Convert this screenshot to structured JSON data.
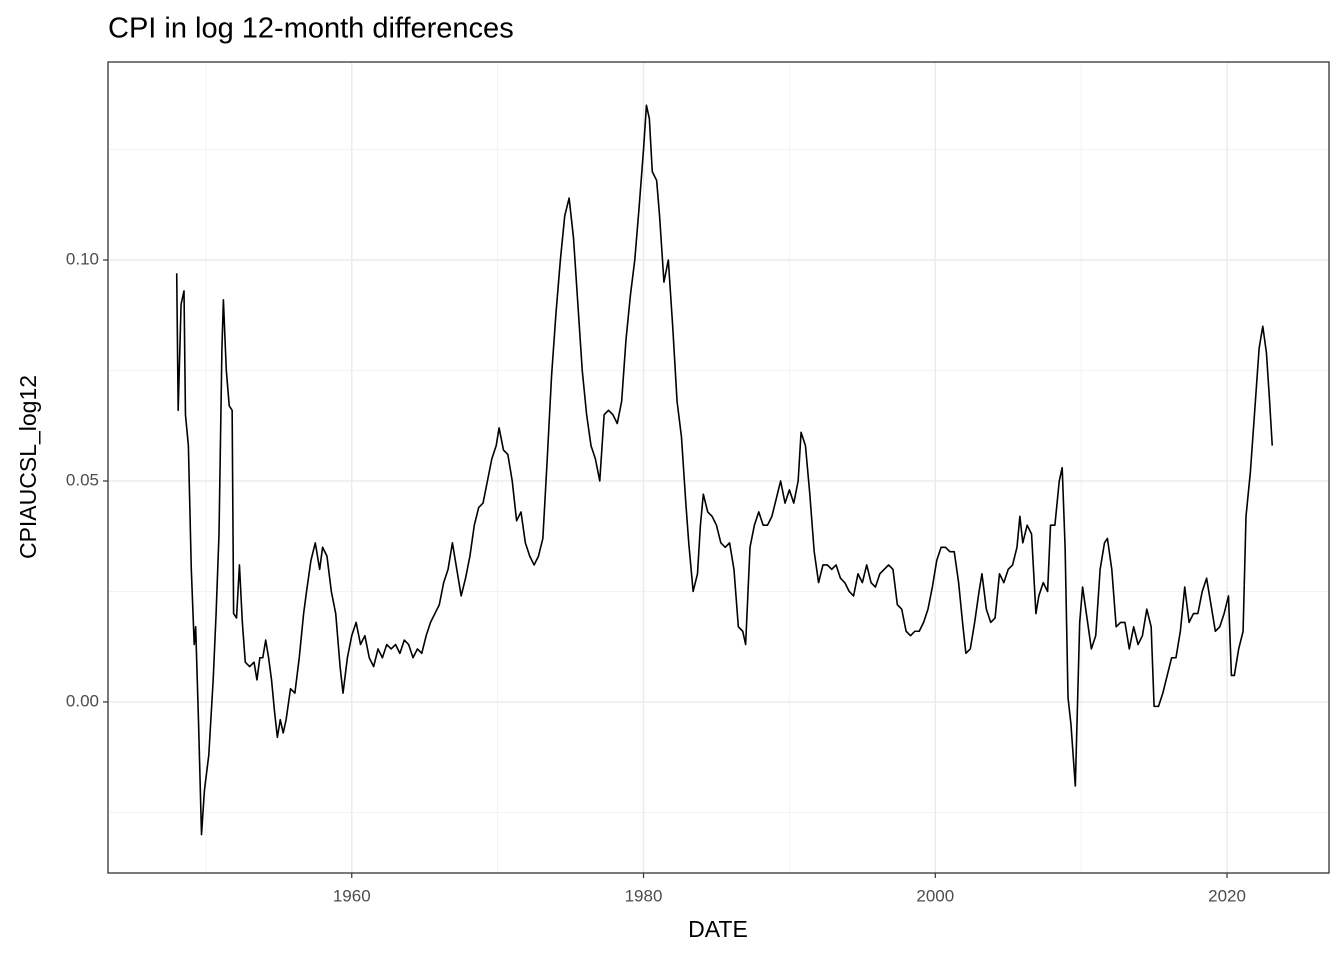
{
  "chart_data": {
    "type": "line",
    "title": "CPI in log 12-month differences",
    "xlabel": "DATE",
    "ylabel": "CPIAUCSL_log12",
    "x": [
      1948.0,
      1948.1,
      1948.3,
      1948.5,
      1948.6,
      1948.8,
      1949.0,
      1949.2,
      1949.3,
      1949.5,
      1949.7,
      1949.9,
      1950.2,
      1950.5,
      1950.7,
      1950.9,
      1951.1,
      1951.2,
      1951.4,
      1951.6,
      1951.8,
      1951.9,
      1952.1,
      1952.3,
      1952.5,
      1952.7,
      1953.0,
      1953.3,
      1953.5,
      1953.7,
      1953.9,
      1954.1,
      1954.3,
      1954.5,
      1954.7,
      1954.9,
      1955.1,
      1955.3,
      1955.5,
      1955.8,
      1956.1,
      1956.4,
      1956.7,
      1956.9,
      1957.2,
      1957.5,
      1957.8,
      1958.0,
      1958.3,
      1958.6,
      1958.9,
      1959.2,
      1959.4,
      1959.7,
      1960.0,
      1960.3,
      1960.6,
      1960.9,
      1961.2,
      1961.5,
      1961.8,
      1962.1,
      1962.4,
      1962.7,
      1963.0,
      1963.3,
      1963.6,
      1963.9,
      1964.2,
      1964.5,
      1964.8,
      1965.1,
      1965.4,
      1965.7,
      1966.0,
      1966.3,
      1966.6,
      1966.9,
      1967.2,
      1967.5,
      1967.8,
      1968.1,
      1968.4,
      1968.7,
      1969.0,
      1969.3,
      1969.6,
      1969.9,
      1970.1,
      1970.4,
      1970.7,
      1971.0,
      1971.3,
      1971.6,
      1971.9,
      1972.2,
      1972.5,
      1972.8,
      1973.1,
      1973.4,
      1973.7,
      1974.0,
      1974.3,
      1974.6,
      1974.9,
      1975.2,
      1975.5,
      1975.8,
      1976.1,
      1976.4,
      1976.7,
      1977.0,
      1977.3,
      1977.6,
      1977.9,
      1978.2,
      1978.5,
      1978.8,
      1979.1,
      1979.4,
      1979.7,
      1980.0,
      1980.2,
      1980.4,
      1980.6,
      1980.9,
      1981.1,
      1981.4,
      1981.7,
      1982.0,
      1982.3,
      1982.6,
      1982.9,
      1983.1,
      1983.4,
      1983.7,
      1983.9,
      1984.1,
      1984.4,
      1984.7,
      1985.0,
      1985.3,
      1985.6,
      1985.9,
      1986.2,
      1986.5,
      1986.8,
      1987.0,
      1987.3,
      1987.6,
      1987.9,
      1988.2,
      1988.5,
      1988.8,
      1989.1,
      1989.4,
      1989.7,
      1990.0,
      1990.3,
      1990.6,
      1990.8,
      1991.1,
      1991.4,
      1991.7,
      1992.0,
      1992.3,
      1992.6,
      1992.9,
      1993.2,
      1993.5,
      1993.8,
      1994.1,
      1994.4,
      1994.7,
      1995.0,
      1995.3,
      1995.6,
      1995.9,
      1996.2,
      1996.5,
      1996.8,
      1997.1,
      1997.4,
      1997.7,
      1998.0,
      1998.3,
      1998.6,
      1998.9,
      1999.2,
      1999.5,
      1999.8,
      2000.1,
      2000.4,
      2000.7,
      2001.0,
      2001.3,
      2001.6,
      2001.9,
      2002.1,
      2002.4,
      2002.7,
      2003.0,
      2003.2,
      2003.5,
      2003.8,
      2004.1,
      2004.4,
      2004.7,
      2005.0,
      2005.3,
      2005.6,
      2005.8,
      2006.0,
      2006.3,
      2006.6,
      2006.9,
      2007.1,
      2007.4,
      2007.7,
      2007.9,
      2008.2,
      2008.5,
      2008.7,
      2008.9,
      2009.1,
      2009.3,
      2009.6,
      2009.9,
      2010.1,
      2010.4,
      2010.7,
      2011.0,
      2011.3,
      2011.6,
      2011.8,
      2012.1,
      2012.4,
      2012.7,
      2013.0,
      2013.3,
      2013.6,
      2013.9,
      2014.2,
      2014.5,
      2014.8,
      2015.0,
      2015.3,
      2015.6,
      2015.9,
      2016.2,
      2016.5,
      2016.8,
      2017.1,
      2017.4,
      2017.7,
      2018.0,
      2018.3,
      2018.6,
      2018.9,
      2019.2,
      2019.5,
      2019.8,
      2020.1,
      2020.3,
      2020.5,
      2020.8,
      2021.1,
      2021.3,
      2021.6,
      2021.9,
      2022.2,
      2022.45,
      2022.7,
      2022.9,
      2023.1
    ],
    "series": [
      {
        "color": "#000000",
        "values": [
          0.097,
          0.066,
          0.09,
          0.093,
          0.065,
          0.058,
          0.03,
          0.013,
          0.017,
          -0.005,
          -0.03,
          -0.02,
          -0.012,
          0.005,
          0.02,
          0.038,
          0.08,
          0.091,
          0.075,
          0.067,
          0.066,
          0.02,
          0.019,
          0.031,
          0.018,
          0.009,
          0.008,
          0.009,
          0.005,
          0.01,
          0.01,
          0.014,
          0.01,
          0.005,
          -0.002,
          -0.008,
          -0.004,
          -0.007,
          -0.004,
          0.003,
          0.002,
          0.01,
          0.02,
          0.025,
          0.032,
          0.036,
          0.03,
          0.035,
          0.033,
          0.025,
          0.02,
          0.008,
          0.002,
          0.01,
          0.015,
          0.018,
          0.013,
          0.015,
          0.01,
          0.008,
          0.012,
          0.01,
          0.013,
          0.012,
          0.013,
          0.011,
          0.014,
          0.013,
          0.01,
          0.012,
          0.011,
          0.015,
          0.018,
          0.02,
          0.022,
          0.027,
          0.03,
          0.036,
          0.03,
          0.024,
          0.028,
          0.033,
          0.04,
          0.044,
          0.045,
          0.05,
          0.055,
          0.058,
          0.062,
          0.057,
          0.056,
          0.05,
          0.041,
          0.043,
          0.036,
          0.033,
          0.031,
          0.033,
          0.037,
          0.055,
          0.074,
          0.088,
          0.1,
          0.11,
          0.114,
          0.105,
          0.09,
          0.075,
          0.065,
          0.058,
          0.055,
          0.05,
          0.065,
          0.066,
          0.065,
          0.063,
          0.068,
          0.082,
          0.092,
          0.1,
          0.112,
          0.125,
          0.135,
          0.132,
          0.12,
          0.118,
          0.11,
          0.095,
          0.1,
          0.085,
          0.068,
          0.06,
          0.045,
          0.036,
          0.025,
          0.029,
          0.04,
          0.047,
          0.043,
          0.042,
          0.04,
          0.036,
          0.035,
          0.036,
          0.03,
          0.017,
          0.016,
          0.013,
          0.035,
          0.04,
          0.043,
          0.04,
          0.04,
          0.042,
          0.046,
          0.05,
          0.045,
          0.048,
          0.045,
          0.05,
          0.061,
          0.058,
          0.047,
          0.034,
          0.027,
          0.031,
          0.031,
          0.03,
          0.031,
          0.028,
          0.027,
          0.025,
          0.024,
          0.029,
          0.027,
          0.031,
          0.027,
          0.026,
          0.029,
          0.03,
          0.031,
          0.03,
          0.022,
          0.021,
          0.016,
          0.015,
          0.016,
          0.016,
          0.018,
          0.021,
          0.026,
          0.032,
          0.035,
          0.035,
          0.034,
          0.034,
          0.027,
          0.017,
          0.011,
          0.012,
          0.018,
          0.025,
          0.029,
          0.021,
          0.018,
          0.019,
          0.029,
          0.027,
          0.03,
          0.031,
          0.035,
          0.042,
          0.036,
          0.04,
          0.038,
          0.02,
          0.024,
          0.027,
          0.025,
          0.04,
          0.04,
          0.05,
          0.053,
          0.035,
          0.001,
          -0.005,
          -0.019,
          0.018,
          0.026,
          0.019,
          0.012,
          0.015,
          0.03,
          0.036,
          0.037,
          0.03,
          0.017,
          0.018,
          0.018,
          0.012,
          0.017,
          0.013,
          0.015,
          0.021,
          0.017,
          -0.001,
          -0.001,
          0.002,
          0.006,
          0.01,
          0.01,
          0.016,
          0.026,
          0.018,
          0.02,
          0.02,
          0.025,
          0.028,
          0.022,
          0.016,
          0.017,
          0.02,
          0.024,
          0.006,
          0.006,
          0.012,
          0.016,
          0.042,
          0.052,
          0.066,
          0.08,
          0.085,
          0.079,
          0.069,
          0.058
        ]
      }
    ],
    "xlim": [
      1943.29,
      2026.99
    ],
    "xticks": [
      1960,
      1980,
      2000,
      2020
    ],
    "ylim": [
      -0.0387,
      0.1448
    ],
    "yticks": [
      {
        "value": 0,
        "label": "0.00"
      },
      {
        "value": 0.05,
        "label": "0.05"
      },
      {
        "value": 0.1,
        "label": "0.10"
      }
    ],
    "grid": true
  }
}
